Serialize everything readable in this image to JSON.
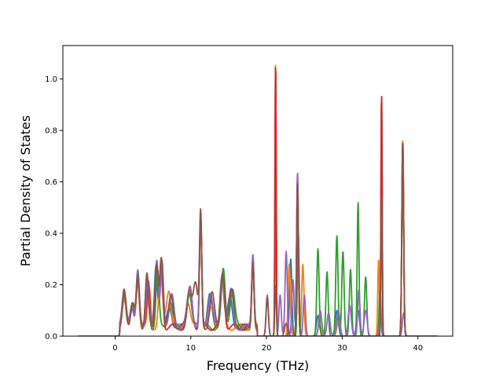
{
  "chart_data": {
    "type": "line",
    "title": "",
    "xlabel": "Frequency (THz)",
    "ylabel": "Partial Density of States",
    "xlim": [
      -6.9,
      44.6
    ],
    "ylim": [
      0,
      1.13
    ],
    "grid": false,
    "legend": "none",
    "x_ticks": [
      {
        "value": 0,
        "label": "0"
      },
      {
        "value": 10,
        "label": "10"
      },
      {
        "value": 20,
        "label": "20"
      },
      {
        "value": 30,
        "label": "30"
      },
      {
        "value": 40,
        "label": "40"
      }
    ],
    "y_ticks": [
      {
        "value": 0.0,
        "label": "0.0"
      },
      {
        "value": 0.2,
        "label": "0.2"
      },
      {
        "value": 0.4,
        "label": "0.4"
      },
      {
        "value": 0.6,
        "label": "0.6"
      },
      {
        "value": 0.8,
        "label": "0.8"
      },
      {
        "value": 1.0,
        "label": "1.0"
      }
    ],
    "series": [
      {
        "color": "#1f77b4",
        "peaks": [
          [
            1.2,
            0.12,
            0.25
          ],
          [
            2.2,
            0.08,
            0.25
          ],
          [
            3.0,
            0.22,
            0.2
          ],
          [
            4.2,
            0.2,
            0.2
          ],
          [
            5.4,
            0.25,
            0.2
          ],
          [
            6.1,
            0.24,
            0.2
          ],
          [
            7.2,
            0.08,
            0.3
          ],
          [
            9.8,
            0.14,
            0.3
          ],
          [
            11.3,
            0.42,
            0.15
          ],
          [
            12.5,
            0.12,
            0.3
          ],
          [
            14.1,
            0.2,
            0.25
          ],
          [
            15.2,
            0.12,
            0.3
          ],
          [
            18.2,
            0.28,
            0.15
          ],
          [
            21.2,
            1.07,
            0.08
          ],
          [
            23.2,
            0.3,
            0.15
          ],
          [
            24.1,
            0.6,
            0.12
          ],
          [
            26.8,
            0.08,
            0.2
          ],
          [
            29.3,
            0.1,
            0.2
          ],
          [
            32.1,
            0.1,
            0.2
          ],
          [
            35.2,
            0.94,
            0.08
          ],
          [
            38.0,
            0.75,
            0.12
          ]
        ]
      },
      {
        "color": "#ff7f0e",
        "peaks": [
          [
            1.2,
            0.12,
            0.25
          ],
          [
            2.3,
            0.07,
            0.25
          ],
          [
            3.0,
            0.18,
            0.2
          ],
          [
            4.5,
            0.15,
            0.2
          ],
          [
            6.0,
            0.2,
            0.25
          ],
          [
            7.1,
            0.15,
            0.3
          ],
          [
            9.6,
            0.1,
            0.3
          ],
          [
            11.3,
            0.42,
            0.15
          ],
          [
            12.8,
            0.08,
            0.3
          ],
          [
            14.2,
            0.16,
            0.25
          ],
          [
            18.2,
            0.22,
            0.15
          ],
          [
            21.2,
            1.08,
            0.08
          ],
          [
            23.0,
            0.28,
            0.15
          ],
          [
            24.1,
            0.55,
            0.12
          ],
          [
            24.8,
            0.28,
            0.15
          ],
          [
            27.0,
            0.05,
            0.2
          ],
          [
            29.5,
            0.06,
            0.2
          ],
          [
            34.8,
            0.3,
            0.1
          ],
          [
            35.2,
            0.95,
            0.08
          ],
          [
            38.0,
            0.77,
            0.12
          ]
        ]
      },
      {
        "color": "#2ca02c",
        "peaks": [
          [
            1.2,
            0.13,
            0.25
          ],
          [
            2.3,
            0.09,
            0.25
          ],
          [
            3.0,
            0.2,
            0.2
          ],
          [
            4.3,
            0.18,
            0.2
          ],
          [
            5.6,
            0.22,
            0.2
          ],
          [
            7.3,
            0.1,
            0.3
          ],
          [
            9.8,
            0.12,
            0.3
          ],
          [
            11.3,
            0.43,
            0.15
          ],
          [
            14.3,
            0.22,
            0.25
          ],
          [
            15.5,
            0.15,
            0.3
          ],
          [
            18.2,
            0.25,
            0.15
          ],
          [
            21.2,
            0.52,
            0.08
          ],
          [
            24.2,
            0.4,
            0.12
          ],
          [
            26.8,
            0.34,
            0.15
          ],
          [
            28.0,
            0.25,
            0.15
          ],
          [
            29.3,
            0.39,
            0.15
          ],
          [
            30.1,
            0.33,
            0.15
          ],
          [
            31.1,
            0.26,
            0.15
          ],
          [
            32.1,
            0.52,
            0.12
          ],
          [
            33.1,
            0.23,
            0.15
          ],
          [
            35.0,
            0.18,
            0.12
          ],
          [
            38.0,
            0.74,
            0.12
          ]
        ]
      },
      {
        "color": "#d62728",
        "peaks": [
          [
            1.2,
            0.13,
            0.25
          ],
          [
            2.3,
            0.08,
            0.25
          ],
          [
            3.0,
            0.2,
            0.2
          ],
          [
            4.4,
            0.19,
            0.2
          ],
          [
            5.5,
            0.24,
            0.2
          ],
          [
            6.1,
            0.26,
            0.2
          ],
          [
            9.9,
            0.15,
            0.3
          ],
          [
            11.3,
            0.43,
            0.15
          ],
          [
            14.2,
            0.21,
            0.25
          ],
          [
            18.2,
            0.27,
            0.15
          ],
          [
            21.2,
            1.07,
            0.08
          ],
          [
            24.1,
            0.62,
            0.12
          ],
          [
            35.2,
            0.95,
            0.08
          ],
          [
            38.0,
            0.76,
            0.12
          ]
        ]
      },
      {
        "color": "#9467bd",
        "peaks": [
          [
            1.2,
            0.13,
            0.25
          ],
          [
            2.2,
            0.09,
            0.25
          ],
          [
            3.0,
            0.21,
            0.2
          ],
          [
            4.3,
            0.2,
            0.2
          ],
          [
            5.5,
            0.25,
            0.2
          ],
          [
            6.2,
            0.27,
            0.2
          ],
          [
            7.5,
            0.12,
            0.3
          ],
          [
            9.9,
            0.16,
            0.3
          ],
          [
            11.3,
            0.43,
            0.15
          ],
          [
            12.6,
            0.14,
            0.3
          ],
          [
            14.2,
            0.22,
            0.25
          ],
          [
            15.3,
            0.14,
            0.3
          ],
          [
            18.2,
            0.29,
            0.15
          ],
          [
            20.1,
            0.16,
            0.15
          ],
          [
            21.8,
            0.16,
            0.15
          ],
          [
            22.6,
            0.33,
            0.15
          ],
          [
            23.5,
            0.22,
            0.15
          ],
          [
            24.1,
            0.64,
            0.12
          ],
          [
            25.0,
            0.16,
            0.15
          ],
          [
            27.1,
            0.1,
            0.2
          ],
          [
            28.2,
            0.09,
            0.2
          ],
          [
            29.5,
            0.1,
            0.2
          ],
          [
            31.0,
            0.12,
            0.2
          ],
          [
            32.2,
            0.18,
            0.15
          ],
          [
            33.1,
            0.1,
            0.2
          ],
          [
            35.1,
            0.08,
            0.15
          ],
          [
            38.1,
            0.09,
            0.15
          ]
        ]
      },
      {
        "color": "#8c564b",
        "peaks": [
          [
            1.2,
            0.14,
            0.25
          ],
          [
            2.3,
            0.1,
            0.25
          ],
          [
            3.0,
            0.19,
            0.2
          ],
          [
            4.2,
            0.22,
            0.2
          ],
          [
            5.5,
            0.24,
            0.2
          ],
          [
            6.1,
            0.28,
            0.2
          ],
          [
            7.4,
            0.12,
            0.3
          ],
          [
            9.8,
            0.15,
            0.3
          ],
          [
            10.6,
            0.17,
            0.3
          ],
          [
            11.3,
            0.44,
            0.15
          ],
          [
            12.8,
            0.13,
            0.3
          ],
          [
            14.2,
            0.22,
            0.25
          ],
          [
            15.4,
            0.14,
            0.3
          ],
          [
            18.2,
            0.26,
            0.15
          ],
          [
            20.1,
            0.15,
            0.15
          ],
          [
            21.2,
            0.2,
            0.1
          ],
          [
            22.6,
            0.05,
            0.2
          ],
          [
            24.1,
            0.6,
            0.12
          ],
          [
            35.2,
            0.55,
            0.08
          ],
          [
            38.0,
            0.76,
            0.12
          ]
        ]
      }
    ]
  }
}
